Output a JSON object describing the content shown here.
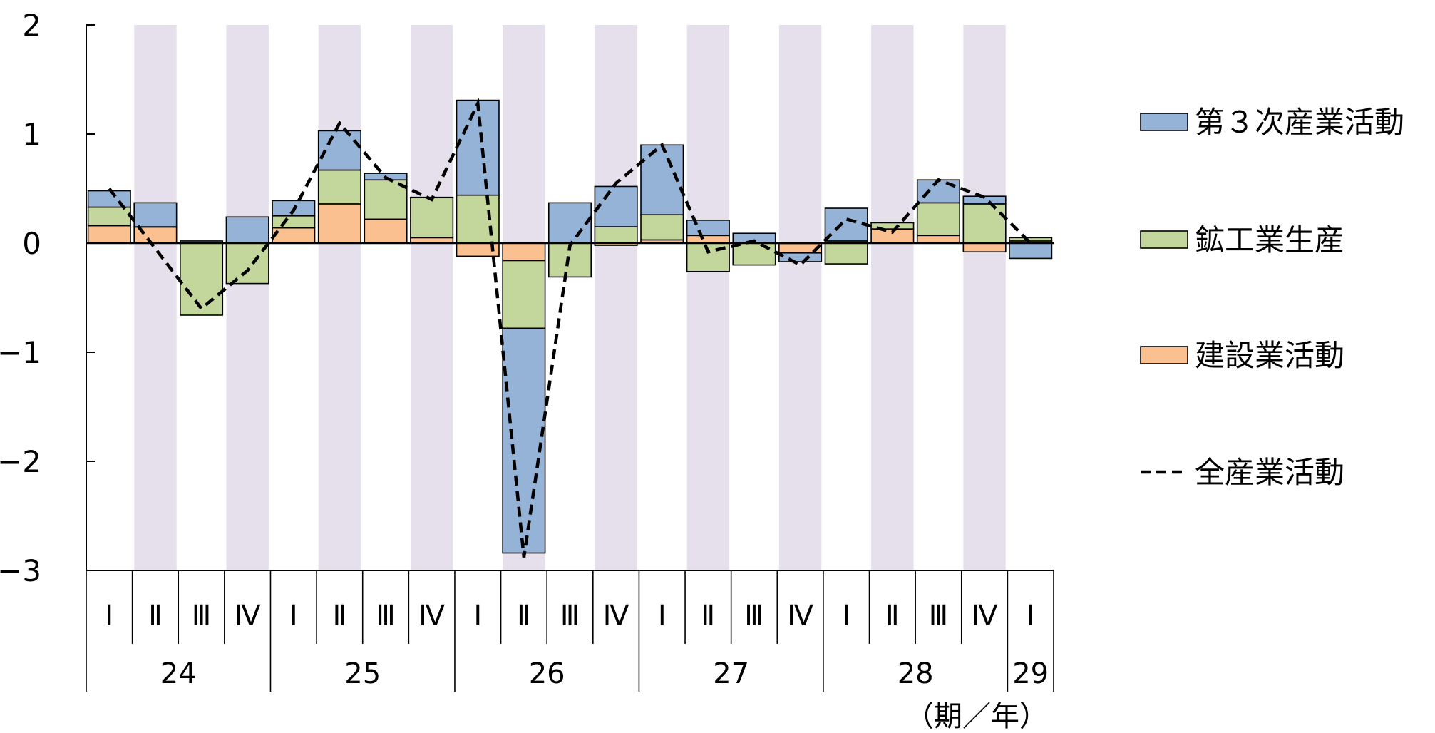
{
  "chart_data": {
    "type": "bar",
    "stacked": true,
    "categories": [
      "24-I",
      "24-II",
      "24-III",
      "24-IV",
      "25-I",
      "25-II",
      "25-III",
      "25-IV",
      "26-I",
      "26-II",
      "26-III",
      "26-IV",
      "27-I",
      "27-II",
      "27-III",
      "27-IV",
      "28-I",
      "28-II",
      "28-III",
      "28-IV",
      "29-I"
    ],
    "quarter_labels": [
      "Ⅰ",
      "Ⅱ",
      "Ⅲ",
      "Ⅳ",
      "Ⅰ",
      "Ⅱ",
      "Ⅲ",
      "Ⅳ",
      "Ⅰ",
      "Ⅱ",
      "Ⅲ",
      "Ⅳ",
      "Ⅰ",
      "Ⅱ",
      "Ⅲ",
      "Ⅳ",
      "Ⅰ",
      "Ⅱ",
      "Ⅲ",
      "Ⅳ",
      "Ⅰ"
    ],
    "years": [
      {
        "label": "24",
        "start": 0,
        "count": 4
      },
      {
        "label": "25",
        "start": 4,
        "count": 4
      },
      {
        "label": "26",
        "start": 8,
        "count": 4
      },
      {
        "label": "27",
        "start": 12,
        "count": 4
      },
      {
        "label": "28",
        "start": 16,
        "count": 4
      },
      {
        "label": "29",
        "start": 20,
        "count": 1
      }
    ],
    "series": [
      {
        "name": "建設業活動",
        "kind": "bar",
        "color": "#FAC090",
        "values": [
          0.16,
          0.15,
          0.0,
          0.0,
          0.14,
          0.36,
          0.22,
          0.05,
          -0.12,
          -0.16,
          0.0,
          -0.02,
          0.03,
          0.07,
          0.0,
          -0.09,
          0.02,
          0.13,
          0.07,
          -0.08,
          0.02
        ]
      },
      {
        "name": "鉱工業生産",
        "kind": "bar",
        "color": "#C3D69B",
        "values": [
          0.17,
          0.0,
          -0.66,
          -0.37,
          0.11,
          0.31,
          0.36,
          0.37,
          0.44,
          -0.62,
          -0.31,
          0.15,
          0.23,
          -0.26,
          -0.2,
          0.0,
          -0.19,
          0.06,
          0.3,
          0.36,
          0.03
        ]
      },
      {
        "name": "第３次産業活動",
        "kind": "bar",
        "color": "#95B3D7",
        "values": [
          0.15,
          0.22,
          0.02,
          0.24,
          0.14,
          0.36,
          0.06,
          0.0,
          0.87,
          -2.06,
          0.37,
          0.37,
          0.64,
          0.14,
          0.09,
          -0.08,
          0.3,
          0.0,
          0.21,
          0.07,
          -0.14
        ]
      },
      {
        "name": "全産業活動",
        "kind": "line",
        "color": "#000000",
        "dash": true,
        "values": [
          0.5,
          -0.05,
          -0.6,
          -0.25,
          0.3,
          1.1,
          0.6,
          0.4,
          1.28,
          -2.88,
          -0.02,
          0.55,
          0.9,
          -0.08,
          0.02,
          -0.2,
          0.22,
          0.1,
          0.58,
          0.42,
          0.0
        ]
      }
    ],
    "legend_order": [
      "第３次産業活動",
      "鉱工業生産",
      "建設業活動",
      "全産業活動"
    ],
    "ylim": [
      -3,
      2
    ],
    "yticks": [
      2,
      1,
      0,
      -1,
      -2,
      -3
    ],
    "ytick_labels": [
      "2",
      "1",
      "0",
      "−1",
      "−2",
      "−3"
    ],
    "unit_label": "（期／年）",
    "shaded_categories": [
      1,
      3,
      5,
      7,
      9,
      11,
      13,
      15,
      17,
      19
    ],
    "shade_color": "#E6E0EC",
    "legend_position": "right"
  }
}
